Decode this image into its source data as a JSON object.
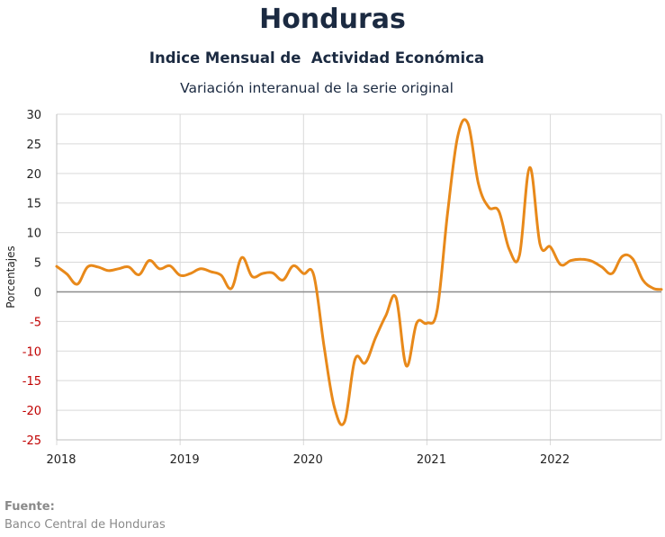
{
  "chart_data": {
    "type": "line",
    "title": "Honduras",
    "subtitle": "Indice Mensual de  Actividad Económica",
    "subtitle2": "Variación interanual de la serie original",
    "ylabel": "Porcentajes",
    "xlabel": "",
    "ylim": [
      -25,
      30
    ],
    "yticks": [
      30,
      25,
      20,
      15,
      10,
      5,
      0,
      -5,
      -10,
      -15,
      -20,
      -25
    ],
    "negative_tick_color": "#c00000",
    "xlim": [
      2018,
      2022.9
    ],
    "xticks": [
      "2018",
      "2019",
      "2020",
      "2021",
      "2022"
    ],
    "grid": true,
    "line_color": "#e8891a",
    "series": [
      {
        "x": [
          2018.0,
          2018.083,
          2018.167,
          2018.25,
          2018.333,
          2018.417,
          2018.5,
          2018.583,
          2018.667,
          2018.75,
          2018.833,
          2018.917,
          2019.0,
          2019.083,
          2019.167,
          2019.25,
          2019.333,
          2019.417,
          2019.5,
          2019.583,
          2019.667,
          2019.75,
          2019.833,
          2019.917,
          2020.0,
          2020.083,
          2020.167,
          2020.25,
          2020.333,
          2020.417,
          2020.5,
          2020.583,
          2020.667,
          2020.75,
          2020.833,
          2020.917,
          2021.0,
          2021.083,
          2021.167,
          2021.25,
          2021.333,
          2021.417,
          2021.5,
          2021.583,
          2021.667,
          2021.75,
          2021.833,
          2021.917,
          2022.0,
          2022.083,
          2022.167,
          2022.25,
          2022.333,
          2022.417,
          2022.5,
          2022.583,
          2022.667,
          2022.75,
          2022.833,
          2022.9
        ],
        "y": [
          4.3,
          3.0,
          1.3,
          4.2,
          4.2,
          3.6,
          3.9,
          4.2,
          2.9,
          5.3,
          3.9,
          4.4,
          2.8,
          3.1,
          3.9,
          3.4,
          2.8,
          0.6,
          5.8,
          2.6,
          3.1,
          3.2,
          2.0,
          4.4,
          3.1,
          2.8,
          -9.3,
          -19.5,
          -21.9,
          -11.4,
          -12.0,
          -7.8,
          -4.0,
          -1.0,
          -12.5,
          -5.3,
          -5.3,
          -3.1,
          13.2,
          26.3,
          28.4,
          18.3,
          14.3,
          13.6,
          7.2,
          6.2,
          21.0,
          8.0,
          7.6,
          4.6,
          5.3,
          5.5,
          5.2,
          4.2,
          3.1,
          6.0,
          5.6,
          2.0,
          0.6,
          0.4
        ]
      }
    ]
  },
  "source": {
    "label": "Fuente:",
    "text": "Banco Central de Honduras"
  }
}
